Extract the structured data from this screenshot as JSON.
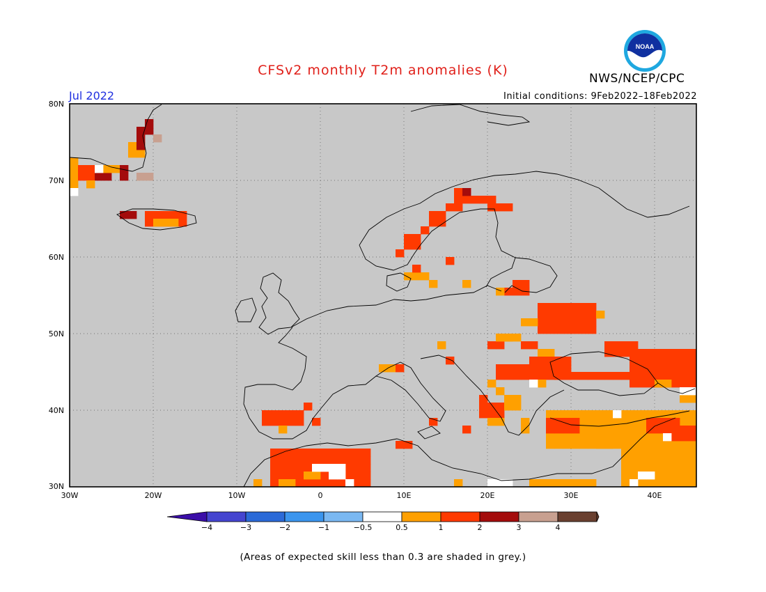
{
  "header": {
    "title": "CFSv2 monthly T2m anomalies (K)",
    "organization": "NWS/NCEP/CPC",
    "valid_month": "Jul 2022",
    "initial_conditions": "Initial conditions: 9Feb2022–18Feb2022"
  },
  "logo": {
    "text": "NOAA",
    "icon": "noaa-logo-icon"
  },
  "map": {
    "region": "Europe",
    "projection": "lat-lon",
    "lon_range": [
      -30,
      45
    ],
    "lat_range": [
      30,
      80
    ],
    "background_color": "#c8c8c8",
    "grid": "dotted",
    "lat_labels": [
      "80N",
      "70N",
      "60N",
      "50N",
      "40N",
      "30N"
    ],
    "lon_labels": [
      "30W",
      "20W",
      "10W",
      "0",
      "10E",
      "20E",
      "30E",
      "40E"
    ]
  },
  "colorbar": {
    "tick_labels": [
      "−4",
      "−3",
      "−2",
      "−1",
      "−0.5",
      "0.5",
      "1",
      "2",
      "3",
      "4"
    ],
    "colors": [
      "#3b0ea8",
      "#4545d0",
      "#2b6ad8",
      "#3b95ee",
      "#7ab8f2",
      "#ffffff",
      "#ffa000",
      "#ff3a00",
      "#a40c0c",
      "#c8a090",
      "#6a4030"
    ]
  },
  "footnote": "(Areas of expected skill less than 0.3 are shaded in grey.)"
}
